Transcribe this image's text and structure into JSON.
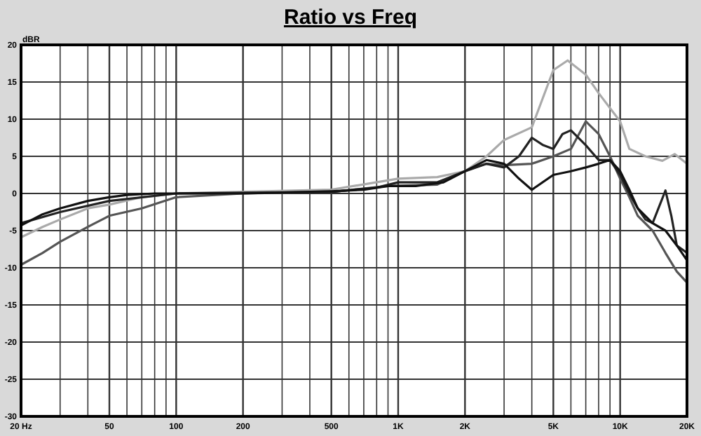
{
  "chart_data": {
    "type": "line",
    "title": "Ratio vs Freq",
    "ylabel": "dBR",
    "log": "x",
    "grid": true,
    "line_style": "solid",
    "marker": "none",
    "xlim": [
      20,
      20000
    ],
    "ylim": [
      -30,
      20
    ],
    "xticks": [
      {
        "value": 20,
        "label": "20 Hz"
      },
      {
        "value": 30,
        "label": null
      },
      {
        "value": 40,
        "label": null
      },
      50,
      {
        "value": 60,
        "label": null
      },
      {
        "value": 70,
        "label": null
      },
      {
        "value": 80,
        "label": null
      },
      {
        "value": 90,
        "label": null
      },
      100,
      200,
      {
        "value": 300,
        "label": null
      },
      {
        "value": 400,
        "label": null
      },
      500,
      {
        "value": 600,
        "label": null
      },
      {
        "value": 700,
        "label": null
      },
      {
        "value": 800,
        "label": null
      },
      {
        "value": 900,
        "label": null
      },
      {
        "value": 1000,
        "label": "1K"
      },
      {
        "value": 2000,
        "label": "2K"
      },
      {
        "value": 3000,
        "label": null
      },
      {
        "value": 4000,
        "label": null
      },
      {
        "value": 5000,
        "label": "5K"
      },
      {
        "value": 6000,
        "label": null
      },
      {
        "value": 7000,
        "label": null
      },
      {
        "value": 8000,
        "label": null
      },
      {
        "value": 9000,
        "label": null
      },
      {
        "value": 10000,
        "label": "10K"
      },
      {
        "value": 20000,
        "label": "20K"
      }
    ],
    "yticks": [
      20,
      15,
      10,
      5,
      0,
      -5,
      -10,
      -15,
      -20,
      -25,
      -30
    ],
    "series": [
      {
        "color": "#aaaaaa",
        "x": [
          20,
          25,
          30,
          40,
          50,
          70,
          100,
          500,
          1000,
          1500,
          2000,
          2500,
          3000,
          4000,
          5000,
          5800,
          7000,
          8000,
          10000,
          11000,
          13000,
          15500,
          17600,
          20000
        ],
        "values": [
          -5.9,
          -4.5,
          -3.5,
          -2,
          -1.5,
          -0.5,
          0,
          0.5,
          2,
          2.2,
          3,
          5,
          7.2,
          8.9,
          16.6,
          17.9,
          16,
          13.5,
          9.7,
          6,
          5,
          4.4,
          5.3,
          4
        ]
      },
      {
        "color": "#555555",
        "x": [
          20,
          25,
          30,
          40,
          50,
          70,
          100,
          200,
          500,
          900,
          1500,
          2000,
          2500,
          3000,
          4000,
          5000,
          6000,
          7000,
          8000,
          9000,
          10000,
          11000,
          12000,
          14000,
          16000,
          18000,
          20000
        ],
        "values": [
          -9.6,
          -8,
          -6.5,
          -4.5,
          -3,
          -2,
          -0.5,
          0,
          0.2,
          1,
          1.2,
          3,
          4,
          3.8,
          4,
          5,
          6,
          9.7,
          8,
          5,
          2,
          -0.5,
          -3,
          -5,
          -8,
          -10.5,
          -12
        ]
      },
      {
        "color": "#222222",
        "x": [
          20,
          30,
          50,
          100,
          500,
          800,
          1000,
          1500,
          2000,
          2500,
          3000,
          3500,
          4000,
          4500,
          5000,
          5500,
          6000,
          7000,
          8000,
          9000,
          10000,
          11000,
          12000,
          13000,
          14000,
          16000,
          17000,
          18000,
          20000
        ],
        "values": [
          -4,
          -2.5,
          -1,
          0,
          0.2,
          0.8,
          1.5,
          1.5,
          3,
          4,
          3.5,
          5,
          7.5,
          6.5,
          6,
          8,
          8.5,
          6.5,
          4.5,
          4.5,
          2.5,
          0,
          -2,
          -3.5,
          -4,
          0.4,
          -3,
          -7,
          -8
        ]
      },
      {
        "color": "#111111",
        "x": [
          20,
          25,
          30,
          40,
          50,
          60,
          80,
          100,
          200,
          500,
          700,
          900,
          1200,
          1600,
          2000,
          2500,
          3000,
          3500,
          4000,
          5000,
          6000,
          7000,
          8000,
          9000,
          10000,
          11000,
          12000,
          14000,
          16000,
          18000,
          20000
        ],
        "values": [
          -4.3,
          -2.8,
          -2,
          -1,
          -0.5,
          -0.2,
          0,
          0,
          0,
          0.3,
          0.5,
          1,
          1,
          1.5,
          3,
          4.5,
          4,
          2,
          0.5,
          2.5,
          3,
          3.5,
          4,
          4.5,
          3,
          0.5,
          -2,
          -4,
          -5,
          -7,
          -9
        ]
      }
    ]
  }
}
